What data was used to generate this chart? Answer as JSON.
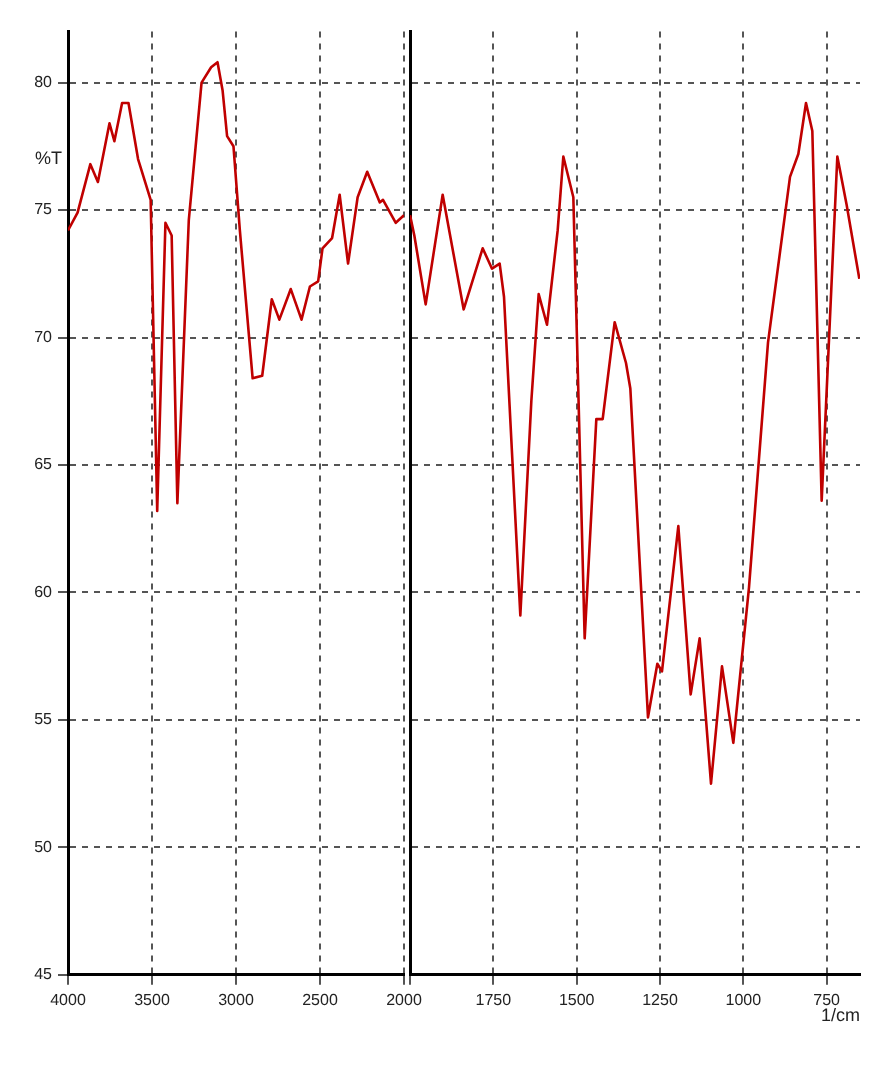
{
  "chart_data": [
    {
      "type": "line",
      "ylabel": "%T",
      "xlim": [
        4000,
        2000
      ],
      "ylim": [
        45,
        82
      ],
      "xticks": [
        4000,
        3500,
        3000,
        2500,
        2000
      ],
      "yticks": [
        45,
        50,
        55,
        60,
        65,
        70,
        75,
        80
      ],
      "grid": true,
      "legend": false,
      "marker": "none",
      "line_style": "solid",
      "series": [
        {
          "color": "#c00000",
          "x": [
            4000,
            3943,
            3867,
            3822,
            3753,
            3724,
            3678,
            3640,
            3583,
            3508,
            3469,
            3420,
            3383,
            3349,
            3281,
            3205,
            3148,
            3110,
            3080,
            3053,
            3015,
            2977,
            2901,
            2844,
            2787,
            2742,
            2674,
            2610,
            2560,
            2511,
            2485,
            2428,
            2383,
            2333,
            2276,
            2219,
            2144,
            2125,
            2049,
            2000
          ],
          "values": [
            74.2,
            74.9,
            76.8,
            76.1,
            78.4,
            77.7,
            79.2,
            79.2,
            77.0,
            75.4,
            63.2,
            74.5,
            74.0,
            63.5,
            74.6,
            80.0,
            80.6,
            80.8,
            79.7,
            77.9,
            77.5,
            74.2,
            68.4,
            68.5,
            71.5,
            70.7,
            71.9,
            70.7,
            72.0,
            72.2,
            73.5,
            73.9,
            75.6,
            72.9,
            75.5,
            76.5,
            75.3,
            75.4,
            74.5,
            74.8
          ]
        }
      ]
    },
    {
      "type": "line",
      "xlabel": "1/cm",
      "xlim": [
        2000,
        650
      ],
      "ylim": [
        45,
        82
      ],
      "xticks": [
        {
          "value": 2000,
          "label": null
        },
        1750,
        1500,
        1250,
        1000,
        750
      ],
      "yticks": [
        45,
        50,
        55,
        60,
        65,
        70,
        75,
        80
      ],
      "tick_labels": "x",
      "grid": true,
      "legend": false,
      "marker": "none",
      "line_style": "solid",
      "series": [
        {
          "color": "#c00000",
          "x": [
            2000,
            1987,
            1953,
            1902,
            1839,
            1782,
            1754,
            1731,
            1718,
            1669,
            1636,
            1614,
            1589,
            1557,
            1540,
            1510,
            1476,
            1441,
            1422,
            1386,
            1352,
            1339,
            1286,
            1258,
            1244,
            1195,
            1158,
            1131,
            1097,
            1064,
            1030,
            983,
            926,
            860,
            835,
            812,
            793,
            765,
            718,
            690,
            652
          ],
          "values": [
            74.8,
            74.0,
            71.3,
            75.6,
            71.1,
            73.5,
            72.7,
            72.9,
            71.6,
            59.1,
            67.5,
            71.7,
            70.5,
            74.2,
            77.1,
            75.5,
            58.2,
            66.8,
            66.8,
            70.6,
            69.0,
            68.0,
            55.1,
            57.2,
            56.9,
            62.6,
            56.0,
            58.2,
            52.5,
            57.1,
            54.1,
            60.2,
            69.8,
            76.3,
            77.2,
            79.2,
            78.1,
            63.6,
            77.1,
            75.2,
            72.3
          ]
        }
      ]
    }
  ]
}
